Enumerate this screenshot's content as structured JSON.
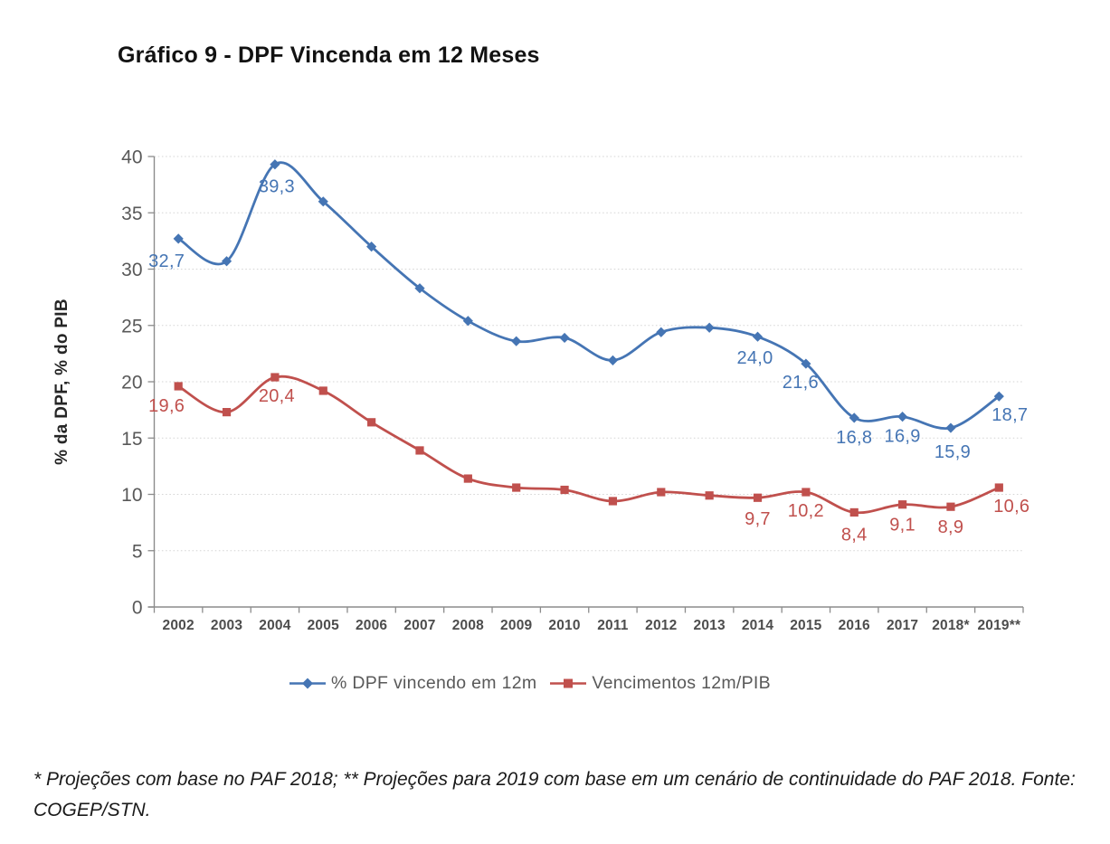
{
  "footnote": "* Projeções com base no PAF 2018; ** Projeções para 2019 com base em um cenário de continuidade do PAF 2018. Fonte: COGEP/STN.",
  "chart_data": {
    "type": "line",
    "title": "Gráfico 9 - DPF Vincenda em 12 Meses",
    "xlabel": "",
    "ylabel": "% da DPF, % do PIB",
    "ylim": [
      0,
      40
    ],
    "ytick_step": 5,
    "grid": "horizontal-dotted",
    "legend_position": "bottom",
    "axis_color": "#8c8c8c",
    "grid_color": "#d6d6d6",
    "categories": [
      "2002",
      "2003",
      "2004",
      "2005",
      "2006",
      "2007",
      "2008",
      "2009",
      "2010",
      "2011",
      "2012",
      "2013",
      "2014",
      "2015",
      "2016",
      "2017",
      "2018*",
      "2019**"
    ],
    "series": [
      {
        "name": "% DPF vincendo em 12m",
        "color": "#4575B4",
        "marker": "diamond",
        "values": [
          32.7,
          30.7,
          39.3,
          36.0,
          32.0,
          28.3,
          25.4,
          23.6,
          23.9,
          21.9,
          24.4,
          24.8,
          24.0,
          21.6,
          16.8,
          16.9,
          15.9,
          18.7
        ],
        "point_labels": {
          "2002": "32,7",
          "2004": "39,3",
          "2014": "24,0",
          "2015": "21,6",
          "2016": "16,8",
          "2017": "16,9",
          "2018*": "15,9",
          "2019**": "18,7"
        }
      },
      {
        "name": "Vencimentos 12m/PIB",
        "color": "#C0504D",
        "marker": "square",
        "values": [
          19.6,
          17.3,
          20.4,
          19.2,
          16.4,
          13.9,
          11.4,
          10.6,
          10.4,
          9.4,
          10.2,
          9.9,
          9.7,
          10.2,
          8.4,
          9.1,
          8.9,
          10.6
        ],
        "point_labels": {
          "2002": "19,6",
          "2004": "20,4",
          "2014": "9,7",
          "2015": "10,2",
          "2016": "8,4",
          "2017": "9,1",
          "2018*": "8,9",
          "2019**": "10,6"
        }
      }
    ]
  }
}
